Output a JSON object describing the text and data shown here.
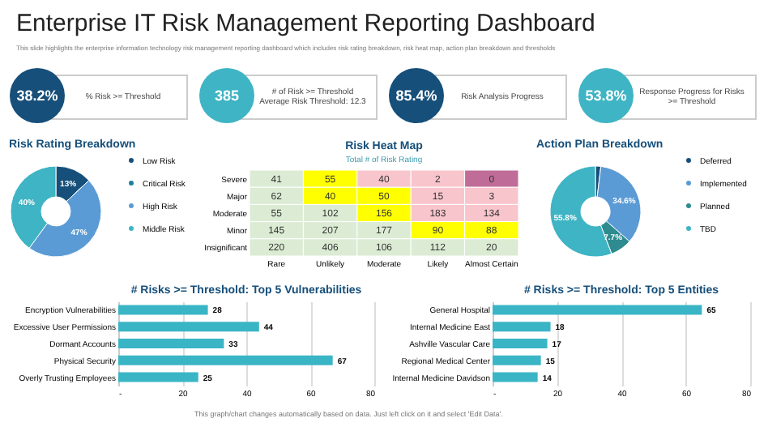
{
  "chart_data": [
    {
      "type": "other",
      "title": "Enterprise IT Risk Management Reporting Dashboard",
      "subtitle": "This slide highlights the enterprise information technology risk management reporting dashboard which includes risk rating breakdown, risk heat map, action plan breakdown and thresholds",
      "annotations": [
        "38.2%",
        "% Risk >= Threshold",
        "385",
        "# of Risk >= Threshold",
        "Average  Risk Threshold: 12.3",
        "85.4%",
        "Risk Analysis Progress",
        "53.8%",
        "Response Progress for Risks >= Threshold",
        "This graph/chart changes automatically based on data. Just left click on it and select 'Edit Data'."
      ]
    },
    {
      "type": "donut",
      "title": "Risk Rating Breakdown",
      "categories": [
        "Low Risk",
        "Critical Risk",
        "High Risk",
        "Middle Risk"
      ],
      "values": [
        13,
        0,
        47,
        40
      ],
      "value_labels": [
        "13%",
        null,
        "47%",
        "40%"
      ],
      "colors": [
        "#164f7a",
        "#1c7fa0",
        "#5b9bd5",
        "#3eb4c4"
      ],
      "legend": "right"
    },
    {
      "type": "heatmap",
      "title": "Risk Heat Map",
      "subtitle": "Total # of Risk Rating",
      "categories": [
        "Rare",
        "Unlikely",
        "Moderate",
        "Likely",
        "Almost Certain"
      ],
      "y_categories": [
        "Severe",
        "Major",
        "Moderate",
        "Minor",
        "Insignificant"
      ],
      "data_labels": true,
      "cells": [
        [
          41,
          55,
          40,
          2,
          0
        ],
        [
          62,
          40,
          50,
          15,
          3
        ],
        [
          55,
          102,
          156,
          183,
          134
        ],
        [
          145,
          207,
          177,
          90,
          88
        ],
        [
          220,
          406,
          106,
          112,
          20
        ]
      ],
      "colors": [
        [
          "#dcecd4",
          "#ffff00",
          "#f9c5cc",
          "#f9c5cc",
          "#c06c98"
        ],
        [
          "#dcecd4",
          "#ffff00",
          "#ffff00",
          "#f9c5cc",
          "#f9c5cc"
        ],
        [
          "#dcecd4",
          "#dcecd4",
          "#ffff00",
          "#f9c5cc",
          "#f9c5cc"
        ],
        [
          "#dcecd4",
          "#dcecd4",
          "#dcecd4",
          "#ffff00",
          "#ffff00"
        ],
        [
          "#dcecd4",
          "#dcecd4",
          "#dcecd4",
          "#dcecd4",
          "#dcecd4"
        ]
      ]
    },
    {
      "type": "donut",
      "title": "Action Plan Breakdown",
      "categories": [
        "Deferred",
        "Implemented",
        "Planned",
        "TBD"
      ],
      "values": [
        1.9,
        34.6,
        7.7,
        55.8
      ],
      "value_labels": [
        null,
        "34.6%",
        "7.7%",
        "55.8%"
      ],
      "colors": [
        "#164f7a",
        "#5b9bd5",
        "#2e8b8f",
        "#3eb4c4"
      ],
      "legend": "right"
    },
    {
      "type": "bar",
      "orientation": "horizontal",
      "title": "# Risks >= Threshold: Top 5 Vulnerabilities",
      "categories": [
        "Encryption Vulnerabilities",
        "Excessive User Permissions",
        "Dormant Accounts",
        "Physical Security",
        "Overly Trusting Employees"
      ],
      "values": [
        28,
        44,
        33,
        67,
        25
      ],
      "color": "#3ab5c6",
      "xlim": [
        0,
        80
      ],
      "xticks": [
        {
          "value": 0,
          "label": "-"
        },
        20,
        40,
        60,
        80
      ],
      "grid": "x",
      "data_labels": true
    },
    {
      "type": "bar",
      "orientation": "horizontal",
      "title": "# Risks >= Threshold: Top 5 Entities",
      "categories": [
        "General Hospital",
        "Internal Medicine East",
        "Ashville Vascular Care",
        "Regional Medical Center",
        "Internal Medicine Davidson"
      ],
      "values": [
        65,
        18,
        17,
        15,
        14
      ],
      "color": "#3ab5c6",
      "xlim": [
        0,
        80
      ],
      "xticks": [
        {
          "value": 0,
          "label": "-"
        },
        20,
        40,
        60,
        80
      ],
      "grid": "x",
      "data_labels": true
    }
  ]
}
